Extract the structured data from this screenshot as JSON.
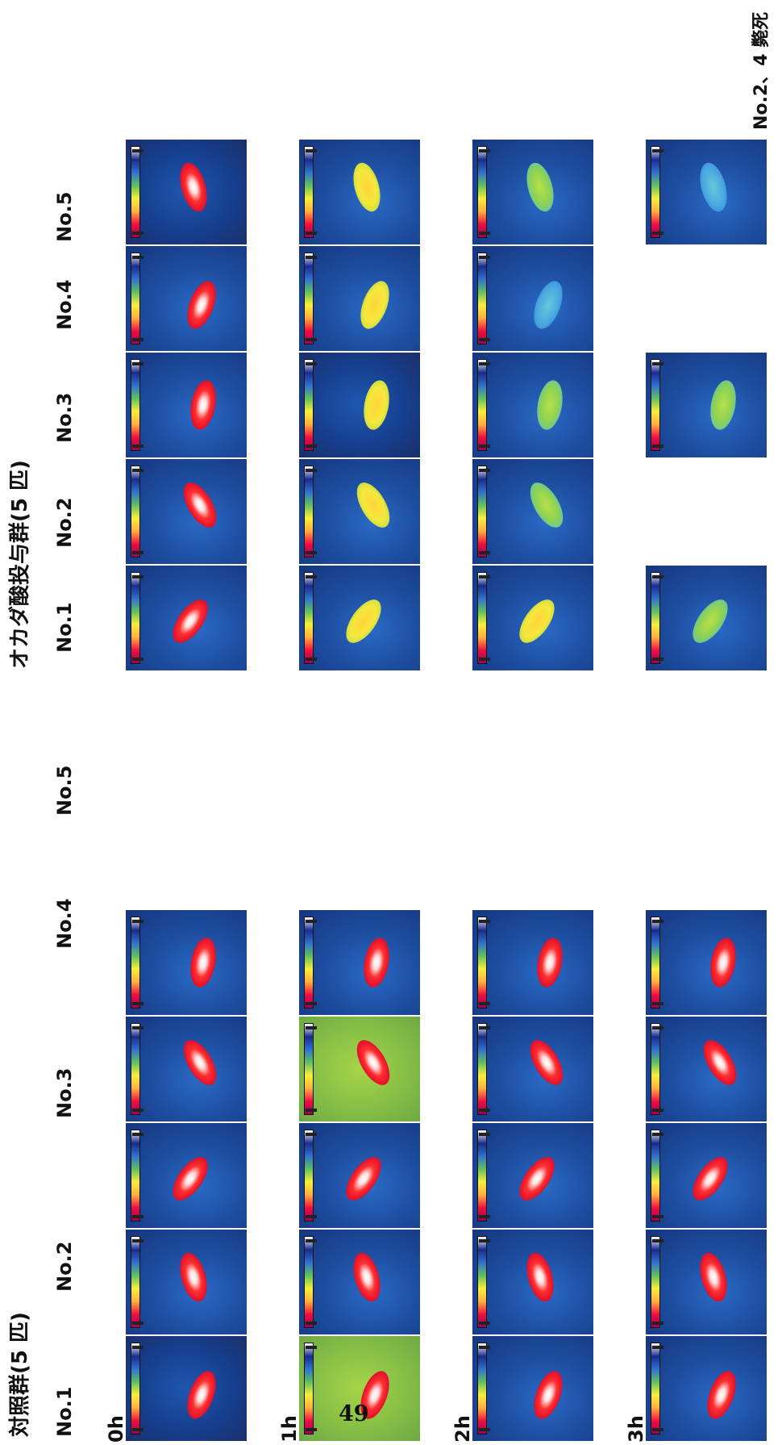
{
  "page_number": "49",
  "groups": [
    {
      "title": "対照群(5 匹)",
      "subjects": [
        "No.1",
        "No.2",
        "No.3",
        "No.4",
        "No.5"
      ]
    },
    {
      "title": "オカダ酸投与群(5 匹)",
      "subjects": [
        "No.1",
        "No.2",
        "No.3",
        "No.4",
        "No.5"
      ]
    }
  ],
  "time_points": [
    "0h",
    "1h",
    "2h",
    "3h"
  ],
  "note": "No.2、4 斃死"
}
